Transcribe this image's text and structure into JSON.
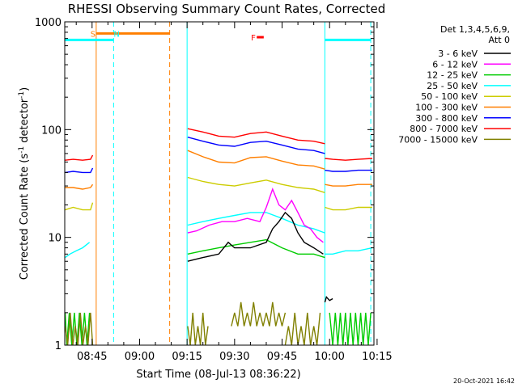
{
  "chart_data": {
    "type": "line",
    "title": "RHESSI Observing Summary Count Rates, Corrected",
    "xlabel": "Start Time (08-Jul-13 08:36:22)",
    "ylabel_main": "Corrected Count Rate (s",
    "ylabel_sup1": "-1",
    "ylabel_mid": " detector",
    "ylabel_sup2": "-1",
    "ylabel_end": ")",
    "y_scale": "log",
    "ylim": [
      1,
      1000
    ],
    "x_range_min": [
      36.37,
      134.0
    ],
    "x_ticks": [
      {
        "label": "08:45",
        "m": 45
      },
      {
        "label": "09:00",
        "m": 60
      },
      {
        "label": "09:15",
        "m": 75
      },
      {
        "label": "09:30",
        "m": 90
      },
      {
        "label": "09:45",
        "m": 105
      },
      {
        "label": "10:00",
        "m": 120
      },
      {
        "label": "10:15",
        "m": 135
      }
    ],
    "y_ticks": [
      {
        "label": "1000",
        "v": 1000
      },
      {
        "label": "100",
        "v": 100
      },
      {
        "label": "10",
        "v": 10
      },
      {
        "label": "1",
        "v": 1
      }
    ],
    "legend": {
      "header1": "Det 1,3,4,5,6,9,",
      "header2": "Att 0",
      "placement": "right",
      "entries": [
        {
          "label": "3 - 6 keV",
          "color": "#000000"
        },
        {
          "label": "6 - 12 keV",
          "color": "#ff00ff"
        },
        {
          "label": "12 - 25 keV",
          "color": "#00cc00"
        },
        {
          "label": "25 - 50 keV",
          "color": "#00ffff"
        },
        {
          "label": "50 - 100 keV",
          "color": "#cccc00"
        },
        {
          "label": "100 - 300 keV",
          "color": "#ff7f00"
        },
        {
          "label": "300 - 800 keV",
          "color": "#0000ff"
        },
        {
          "label": "800 - 7000 keV",
          "color": "#ff0000"
        },
        {
          "label": "7000 - 15000 keV",
          "color": "#808000"
        }
      ]
    },
    "series": [
      {
        "color": "#ff0000",
        "segments": [
          {
            "x": [
              36.5,
              39,
              42,
              44.5,
              45.2
            ],
            "y": [
              52,
              53,
              52,
              53,
              58
            ]
          },
          {
            "x": [
              75.2,
              80,
              85,
              90,
              95,
              100,
              105,
              110,
              115,
              118.5
            ],
            "y": [
              102,
              95,
              87,
              85,
              92,
              95,
              87,
              80,
              78,
              74
            ]
          },
          {
            "x": [
              118.5,
              121,
              125,
              129,
              133.5
            ],
            "y": [
              54,
              53,
              52,
              53,
              54
            ]
          }
        ]
      },
      {
        "color": "#0000ff",
        "segments": [
          {
            "x": [
              36.5,
              39,
              42,
              44.5,
              45.2
            ],
            "y": [
              40,
              41,
              40,
              40,
              44
            ]
          },
          {
            "x": [
              75.2,
              80,
              85,
              90,
              95,
              100,
              105,
              110,
              115,
              118.5
            ],
            "y": [
              85,
              78,
              72,
              70,
              76,
              78,
              72,
              66,
              64,
              60
            ]
          },
          {
            "x": [
              118.5,
              121,
              125,
              129,
              133.5
            ],
            "y": [
              42,
              41,
              41,
              42,
              42
            ]
          }
        ]
      },
      {
        "color": "#ff7f00",
        "segments": [
          {
            "x": [
              36.5,
              39,
              42,
              44.5,
              45.2
            ],
            "y": [
              29,
              29,
              28,
              29,
              31
            ]
          },
          {
            "x": [
              75.2,
              80,
              85,
              90,
              95,
              100,
              105,
              110,
              115,
              118.5
            ],
            "y": [
              64,
              56,
              50,
              49,
              55,
              56,
              51,
              47,
              46,
              43
            ]
          },
          {
            "x": [
              118.5,
              121,
              125,
              129,
              133.5
            ],
            "y": [
              31,
              30,
              30,
              31,
              31
            ]
          }
        ]
      },
      {
        "color": "#cccc00",
        "segments": [
          {
            "x": [
              36.5,
              39,
              42,
              44.5,
              45.2
            ],
            "y": [
              18,
              19,
              18,
              18,
              21
            ]
          },
          {
            "x": [
              75.2,
              80,
              85,
              90,
              95,
              100,
              105,
              110,
              115,
              118.5
            ],
            "y": [
              36,
              33,
              31,
              30,
              32,
              34,
              31,
              29,
              28,
              26
            ]
          },
          {
            "x": [
              118.5,
              121,
              125,
              129,
              133.5
            ],
            "y": [
              19,
              18,
              18,
              19,
              19
            ]
          }
        ]
      },
      {
        "color": "#00ffff",
        "segments": [
          {
            "x": [
              36.5,
              38,
              40,
              42,
              44.2
            ],
            "y": [
              6.5,
              7,
              7.5,
              8,
              9
            ]
          },
          {
            "x": [
              75.2,
              80,
              85,
              90,
              95,
              100,
              105,
              110,
              115,
              118.5
            ],
            "y": [
              13,
              14,
              15,
              16,
              17,
              17,
              15,
              13,
              12,
              11
            ]
          },
          {
            "x": [
              118.5,
              121,
              125,
              129,
              133.5
            ],
            "y": [
              7,
              7,
              7.5,
              7.5,
              8
            ]
          }
        ]
      },
      {
        "color": "#ff00ff",
        "segments": [
          {
            "x": [
              75.2,
              78,
              82,
              86,
              90,
              94,
              98,
              100,
              102,
              104,
              106,
              108,
              110,
              112,
              114,
              116,
              118
            ],
            "y": [
              11,
              11.5,
              13,
              14,
              14,
              15,
              14,
              19,
              28,
              20,
              18,
              22,
              17,
              13,
              12,
              10,
              9
            ]
          }
        ]
      },
      {
        "color": "#00cc00",
        "segments": [
          {
            "x": [
              75.2,
              80,
              85,
              90,
              95,
              100,
              105,
              110,
              115,
              118.5
            ],
            "y": [
              7,
              7.5,
              8,
              8.5,
              9,
              9.5,
              8,
              7,
              7,
              6.5
            ]
          },
          {
            "x": [
              120,
              121,
              121.8,
              122.6,
              123.4,
              124.2,
              125,
              125.8,
              126.6,
              127.4,
              128.2,
              129,
              129.8,
              130.6,
              131.4,
              132.2,
              133
            ],
            "y": [
              2,
              1,
              2,
              1,
              2,
              1,
              2,
              1,
              2,
              1,
              2,
              1,
              2,
              1,
              2,
              1,
              2
            ]
          },
          {
            "x": [
              36.5,
              37,
              37.8,
              38.6,
              39.4,
              40.2,
              41,
              41.8,
              42.6,
              43.4,
              44.2
            ],
            "y": [
              2,
              1,
              2,
              1,
              2,
              1,
              2,
              1,
              2,
              1,
              2
            ]
          }
        ]
      },
      {
        "color": "#000000",
        "segments": [
          {
            "x": [
              75.2,
              80,
              85,
              88,
              90,
              95,
              100,
              102,
              104,
              106,
              108,
              110,
              112,
              115,
              118
            ],
            "y": [
              6,
              6.5,
              7,
              9,
              8,
              8,
              9,
              12,
              14,
              17,
              15,
              11,
              9,
              8,
              7
            ]
          },
          {
            "x": [
              118.5,
              119,
              120,
              121
            ],
            "y": [
              2.5,
              2.8,
              2.6,
              2.7
            ]
          }
        ]
      },
      {
        "color": "#808000",
        "segments": [
          {
            "x": [
              36.5,
              37.3,
              38.1,
              38.9,
              39.7,
              40.5,
              41.3,
              42.1,
              42.9,
              43.7,
              44.5,
              45.2
            ],
            "y": [
              1.5,
              1,
              2,
              1,
              1.5,
              1,
              2,
              1,
              1.5,
              1,
              2,
              1
            ]
          },
          {
            "x": [
              75.2,
              76,
              76.8,
              77.6,
              78.4,
              79.2,
              80,
              80.8,
              81.6
            ],
            "y": [
              1.5,
              1,
              2,
              1,
              1.5,
              1,
              2,
              1,
              1.5
            ]
          },
          {
            "x": [
              89,
              90,
              91,
              92,
              93,
              94,
              95,
              96,
              97,
              98,
              99,
              100,
              101,
              102,
              103,
              104,
              105,
              106
            ],
            "y": [
              1.5,
              2,
              1.5,
              2.5,
              1.5,
              2,
              1.5,
              2.5,
              1.5,
              2,
              1.5,
              2,
              1.5,
              2.5,
              1.5,
              2,
              1.5,
              2
            ]
          },
          {
            "x": [
              106,
              107,
              108,
              109,
              110,
              111,
              112,
              113,
              114,
              115,
              116,
              117
            ],
            "y": [
              1,
              1.5,
              1,
              2,
              1,
              1.5,
              1,
              2,
              1,
              1.5,
              1,
              2
            ]
          }
        ]
      }
    ],
    "markers": [
      {
        "label": "S",
        "color": "#ff7f00",
        "x_label": 44.5
      },
      {
        "label": "N",
        "color": "#00ffff",
        "x_label": 51.8
      },
      {
        "label": "F",
        "color": "#ff0000",
        "x_label": 95.2
      }
    ],
    "bars": [
      {
        "color": "#00ffff",
        "x": [
          36.37,
          51.8
        ],
        "y": 680
      },
      {
        "color": "#ff7f00",
        "x": [
          46.3,
          69.5
        ],
        "y": 780
      },
      {
        "color": "#ff0000",
        "x": [
          97.0,
          99.2
        ],
        "y": 720
      },
      {
        "color": "#00ffff",
        "x": [
          118.5,
          133.0
        ],
        "y": 680
      }
    ],
    "vlines": [
      {
        "color": "#ff7f00",
        "x": 46.3,
        "dashed": false
      },
      {
        "color": "#00ffff",
        "x": 51.8,
        "dashed": true
      },
      {
        "color": "#ff7f00",
        "x": 69.5,
        "dashed": true
      },
      {
        "color": "#00ffff",
        "x": 75.0,
        "dashed": false
      },
      {
        "color": "#00ffff",
        "x": 118.5,
        "dashed": false
      },
      {
        "color": "#00ffff",
        "x": 133.0,
        "dashed": true
      }
    ]
  },
  "timestamp": "20-Oct-2021 16:42"
}
